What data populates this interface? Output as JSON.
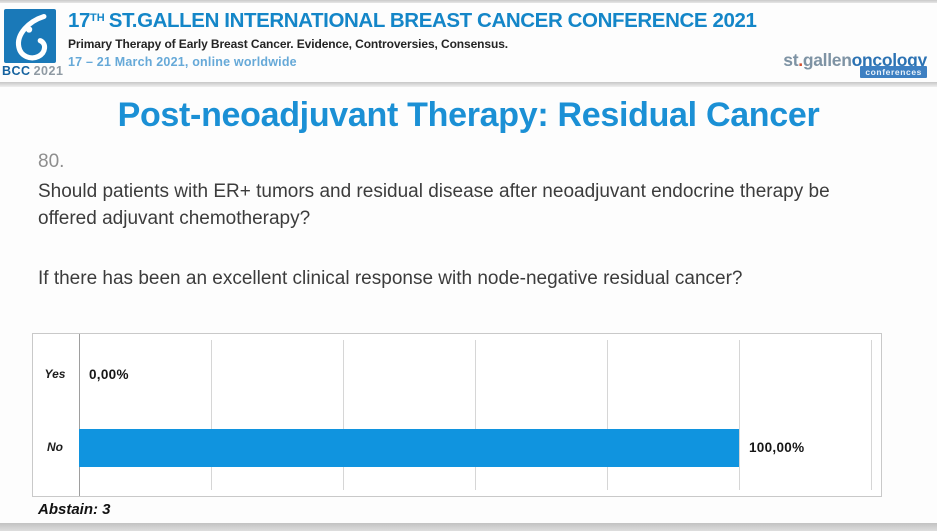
{
  "header": {
    "logo_caption_bcc": "BCC",
    "logo_caption_year": "2021",
    "title_num": "17",
    "title_sup": "TH",
    "title_rest": "ST.GALLEN INTERNATIONAL BREAST CANCER CONFERENCE 2021",
    "subtitle": "Primary Therapy of Early Breast Cancer. Evidence, Controversies, Consensus.",
    "dates": "17 – 21 March 2021, online worldwide",
    "right_logo": {
      "st": "st",
      "dot": ".",
      "gallen": "gallen",
      "oncology": "oncology",
      "ribbon": "conferences"
    }
  },
  "slide": {
    "title": "Post-neoadjuvant Therapy: Residual Cancer",
    "question_number": "80.",
    "question": "Should patients with ER+ tumors and residual disease after neoadjuvant endocrine therapy be offered adjuvant chemotherapy?",
    "sub_question": "If there has been an excellent clinical response with node-negative residual cancer?"
  },
  "chart_data": {
    "type": "bar",
    "orientation": "horizontal",
    "title": "",
    "categories": [
      "Yes",
      "No"
    ],
    "values": [
      0,
      100
    ],
    "value_labels": [
      "0,00%",
      "100,00%"
    ],
    "xlim": [
      0,
      120
    ],
    "tick_interval": 20,
    "grid": true,
    "legend": false,
    "bar_color": "#1094df",
    "annotation": "Abstain: 3"
  },
  "colors": {
    "slide_title_blue": "#1b90d5",
    "conference_title_blue": "#1486c8",
    "dates_blue": "#66a9d8",
    "bar_blue": "#1094df",
    "logo_square_blue": "#1a79b8",
    "logo_dot_orange": "#d1502f",
    "ribbon_blue": "#3e80c2"
  }
}
